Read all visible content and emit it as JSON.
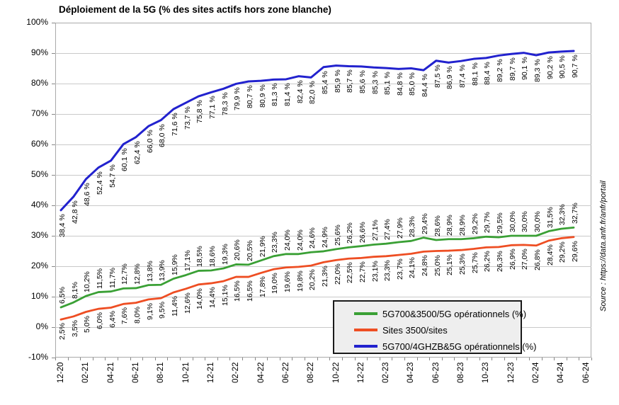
{
  "title": "Déploiement de la 5G (% des sites actifs hors zone blanche)",
  "source_note": "Source : https://data.anfr.fr/anfr/portail",
  "y_axis_tick_labels": [
    "100%",
    "90%",
    "80%",
    "70%",
    "60%",
    "50%",
    "40%",
    "30%",
    "20%",
    "10%",
    "0%",
    "-10%"
  ],
  "x_axis_tick_labels": [
    "12-20",
    "02-21",
    "04-21",
    "06-21",
    "08-21",
    "10-21",
    "12-21",
    "02-22",
    "04-22",
    "06-22",
    "08-22",
    "10-22",
    "12-22",
    "02-23",
    "04-23",
    "06-23",
    "08-23",
    "10-23",
    "12-23",
    "02-24",
    "04-24",
    "06-24"
  ],
  "chart_data": {
    "type": "line",
    "title": "Déploiement de la 5G (% des sites actifs hors zone blanche)",
    "ylim": [
      -10,
      100
    ],
    "y_tick_step": 10,
    "grid": true,
    "legend_position": "inside-bottom-right",
    "x_tick_labels": [
      "12-20",
      "02-21",
      "04-21",
      "06-21",
      "08-21",
      "10-21",
      "12-21",
      "02-22",
      "04-22",
      "06-22",
      "08-22",
      "10-22",
      "12-22",
      "02-23",
      "04-23",
      "06-23",
      "08-23",
      "10-23",
      "12-23",
      "02-24",
      "04-24",
      "06-24"
    ],
    "decimal_separator": ",",
    "series": [
      {
        "name": "5G700&3500/5G opérationnels (%)",
        "color": "#3aa035",
        "label_position": "above",
        "label_suffix": "%",
        "values": [
          6.5,
          8.1,
          10.2,
          11.5,
          11.7,
          12.7,
          12.8,
          13.8,
          13.9,
          15.9,
          17.1,
          18.5,
          18.6,
          19.3,
          20.6,
          20.5,
          21.9,
          23.3,
          24.0,
          24.0,
          24.6,
          24.9,
          25.6,
          26.2,
          26.6,
          27.1,
          27.4,
          27.9,
          28.3,
          29.4,
          28.6,
          28.9,
          28.9,
          29.2,
          29.7,
          29.5,
          30.0,
          30.0,
          30.0,
          31.5,
          32.3,
          32.7
        ]
      },
      {
        "name": "Sites 3500/sites",
        "color": "#ee4e23",
        "label_position": "below",
        "label_suffix": "%",
        "values": [
          2.5,
          3.5,
          5.0,
          6.0,
          6.4,
          7.6,
          8.0,
          9.1,
          9.5,
          11.4,
          12.6,
          14.0,
          14.4,
          15.1,
          16.5,
          16.5,
          17.8,
          19.0,
          19.6,
          19.8,
          20.2,
          21.3,
          22.0,
          22.5,
          22.7,
          23.1,
          23.3,
          23.7,
          24.1,
          24.8,
          25.0,
          25.1,
          25.3,
          25.7,
          26.2,
          26.3,
          26.9,
          27.0,
          26.8,
          28.4,
          29.2,
          29.6
        ]
      },
      {
        "name": "5G700/4GHZB&5G opérationnels (%)",
        "color": "#2222ce",
        "label_position": "below",
        "label_suffix": " %",
        "values": [
          38.4,
          42.8,
          48.6,
          52.4,
          54.7,
          60.1,
          62.4,
          66.0,
          68.0,
          71.6,
          73.7,
          75.8,
          77.1,
          78.3,
          79.9,
          80.7,
          80.9,
          81.3,
          81.4,
          82.4,
          82.0,
          85.4,
          85.9,
          85.7,
          85.6,
          85.3,
          85.1,
          84.8,
          85.0,
          84.4,
          87.5,
          86.9,
          87.4,
          88.1,
          88.4,
          89.2,
          89.7,
          90.1,
          89.3,
          90.2,
          90.5,
          90.7
        ]
      }
    ]
  },
  "legend": {
    "entries": [
      {
        "label": "5G700&3500/5G opérationnels (%)",
        "color": "#3aa035"
      },
      {
        "label": "Sites 3500/sites",
        "color": "#ee4e23"
      },
      {
        "label": "5G700/4GHZB&5G opérationnels (%)",
        "color": "#2222ce"
      }
    ]
  }
}
